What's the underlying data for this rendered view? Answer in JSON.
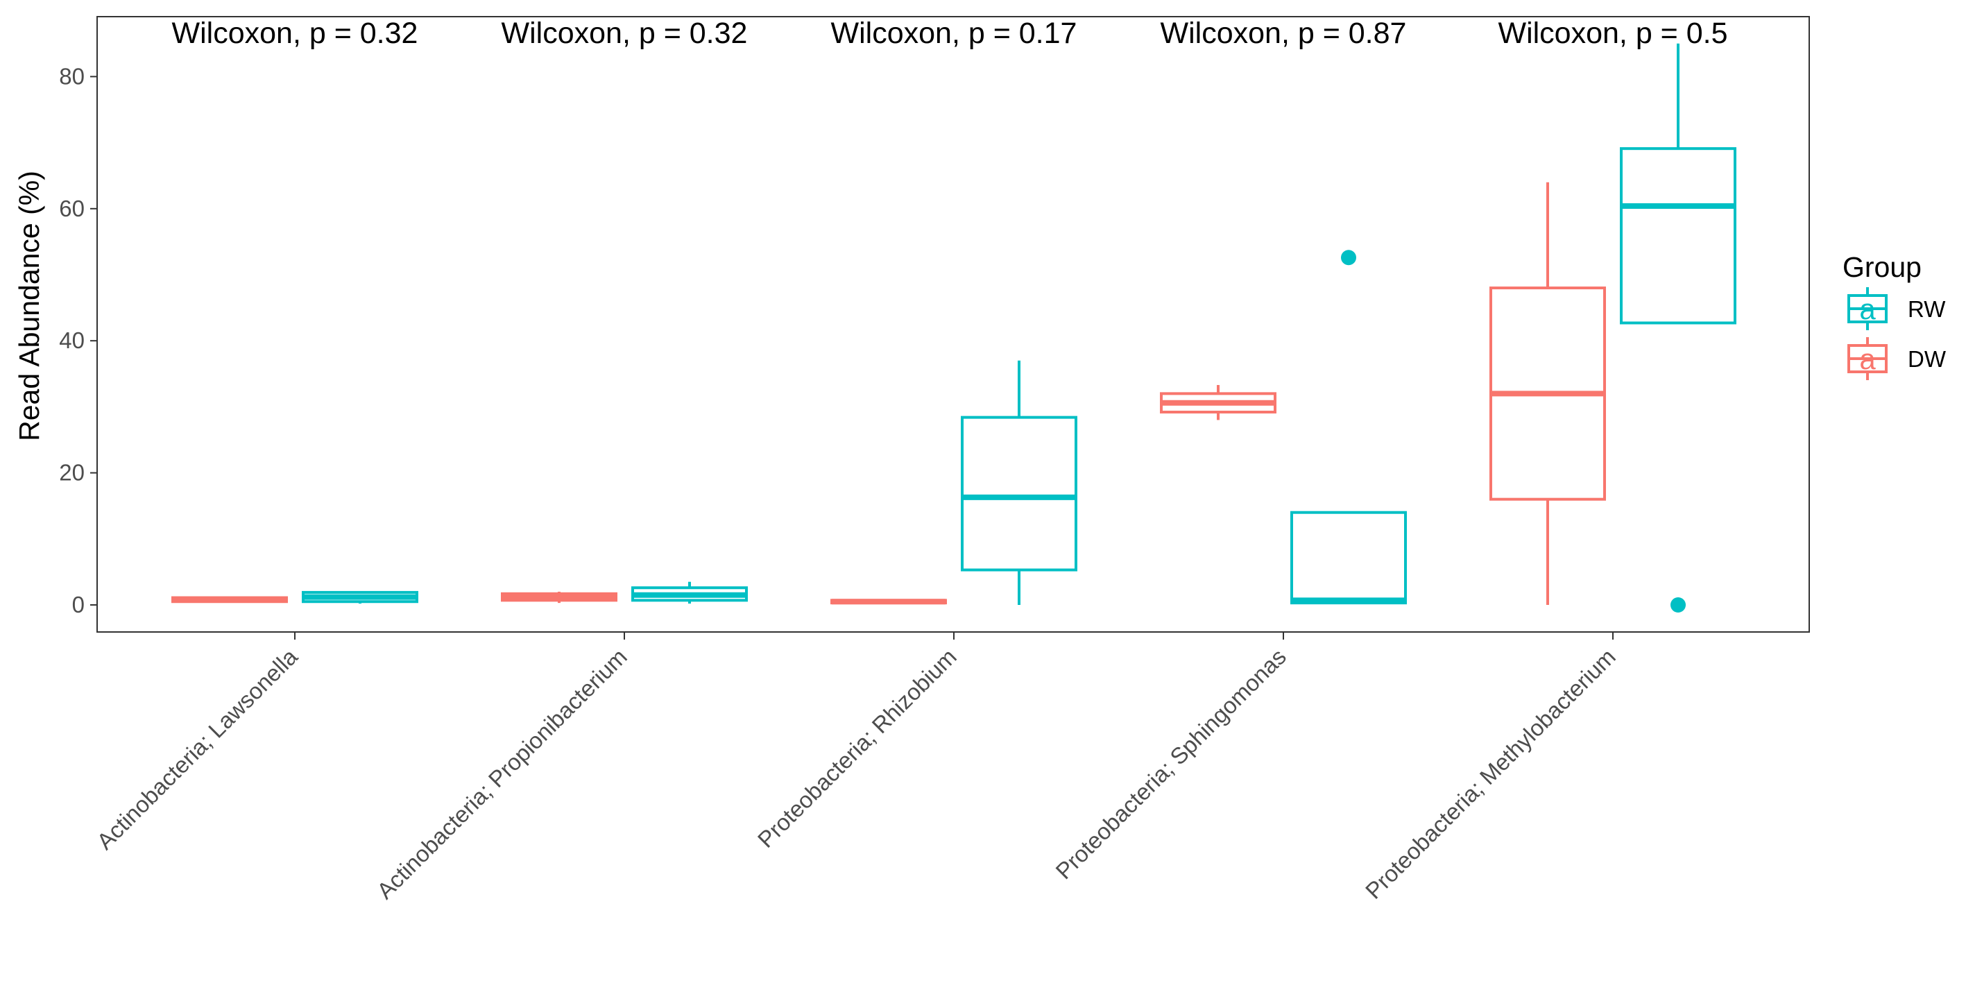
{
  "chart_data": {
    "type": "box",
    "title": "",
    "xlabel": "",
    "ylabel": "Read Abundance (%)",
    "ylim": [
      -4,
      88
    ],
    "yticks": [
      0,
      20,
      40,
      60,
      80
    ],
    "grid": false,
    "legend_position": "right",
    "legend_title": "Group",
    "categories": [
      "Actinobacteria; Lawsonella",
      "Actinobacteria; Propionibacterium",
      "Proteobacteria; Rhizobium",
      "Proteobacteria; Sphingomonas",
      "Proteobacteria; Methylobacterium"
    ],
    "annotations": [
      "Wilcoxon, p = 0.32",
      "Wilcoxon, p = 0.32",
      "Wilcoxon, p = 0.17",
      "Wilcoxon, p = 0.87",
      "Wilcoxon, p = 0.5"
    ],
    "series": [
      {
        "name": "DW",
        "color": "#F8766D",
        "boxes": [
          {
            "min": 0.5,
            "q1": 0.5,
            "median": 0.8,
            "q3": 1.1,
            "max": 1.1,
            "outliers": []
          },
          {
            "min": 0.3,
            "q1": 0.7,
            "median": 1.1,
            "q3": 1.7,
            "max": 2.0,
            "outliers": []
          },
          {
            "min": 0.2,
            "q1": 0.3,
            "median": 0.5,
            "q3": 0.7,
            "max": 0.7,
            "outliers": []
          },
          {
            "min": 28.0,
            "q1": 29.2,
            "median": 30.6,
            "q3": 32.0,
            "max": 33.3,
            "outliers": []
          },
          {
            "min": 0.0,
            "q1": 16.0,
            "median": 32.0,
            "q3": 48.0,
            "max": 64.0,
            "outliers": []
          }
        ]
      },
      {
        "name": "RW",
        "color": "#00BFC4",
        "boxes": [
          {
            "min": 0.2,
            "q1": 0.5,
            "median": 1.2,
            "q3": 1.9,
            "max": 1.9,
            "outliers": []
          },
          {
            "min": 0.2,
            "q1": 0.7,
            "median": 1.5,
            "q3": 2.6,
            "max": 3.5,
            "outliers": []
          },
          {
            "min": 0.0,
            "q1": 5.3,
            "median": 16.3,
            "q3": 28.4,
            "max": 37.0,
            "outliers": []
          },
          {
            "min": 0.3,
            "q1": 0.3,
            "median": 0.7,
            "q3": 14.0,
            "max": 14.0,
            "outliers": [
              52.6
            ]
          },
          {
            "min": 42.7,
            "q1": 42.7,
            "median": 60.4,
            "q3": 69.1,
            "max": 85.0,
            "outliers": [
              0.0
            ]
          }
        ]
      }
    ],
    "legend": [
      {
        "name": "RW",
        "color": "#00BFC4",
        "glyph": "a"
      },
      {
        "name": "DW",
        "color": "#F8766D",
        "glyph": "a"
      }
    ]
  }
}
